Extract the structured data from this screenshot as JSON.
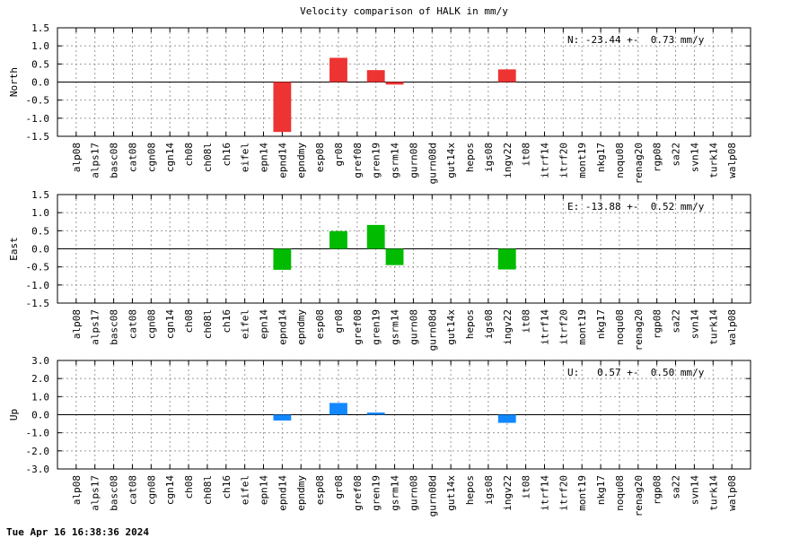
{
  "title": "Velocity comparison of HALK in mm/y",
  "timestamp": "Tue Apr 16 16:38:36 2024",
  "chart_data": [
    {
      "type": "bar",
      "ylabel": "North",
      "annotation": "N: -23.44 +-  0.73 mm/y",
      "ylim": [
        -1.5,
        1.5
      ],
      "yticks": [
        -1.5,
        -1.0,
        -0.5,
        0.0,
        0.5,
        1.0,
        1.5
      ],
      "color": "#ee3333",
      "grid": true,
      "categories": [
        "alp08",
        "alps17",
        "basc08",
        "cat08",
        "cgn08",
        "cgn14",
        "ch08",
        "ch08l",
        "ch16",
        "eifel",
        "epn14",
        "epnd14",
        "epndmy",
        "esp08",
        "gr08",
        "gref08",
        "gren19",
        "gsrm14",
        "gurn08",
        "gurn08d",
        "gut14x",
        "hepos",
        "igs08",
        "ingv22",
        "it08",
        "itrf14",
        "itrf20",
        "mont19",
        "nkg17",
        "noqu08",
        "renag20",
        "rgp08",
        "sa22",
        "svn14",
        "turk14",
        "walp08"
      ],
      "values": [
        0,
        0,
        0,
        0,
        0,
        0,
        0,
        0,
        0,
        0,
        0,
        -1.38,
        0,
        0,
        0.67,
        0,
        0.33,
        -0.07,
        0,
        0,
        0,
        0,
        0,
        0.35,
        0,
        0,
        0,
        0,
        0,
        0,
        0,
        0,
        0,
        0,
        0,
        0
      ]
    },
    {
      "type": "bar",
      "ylabel": "East",
      "annotation": "E: -13.88 +-  0.52 mm/y",
      "ylim": [
        -1.5,
        1.5
      ],
      "yticks": [
        -1.5,
        -1.0,
        -0.5,
        0.0,
        0.5,
        1.0,
        1.5
      ],
      "color": "#00bb00",
      "grid": true,
      "categories": [
        "alp08",
        "alps17",
        "basc08",
        "cat08",
        "cgn08",
        "cgn14",
        "ch08",
        "ch08l",
        "ch16",
        "eifel",
        "epn14",
        "epnd14",
        "epndmy",
        "esp08",
        "gr08",
        "gref08",
        "gren19",
        "gsrm14",
        "gurn08",
        "gurn08d",
        "gut14x",
        "hepos",
        "igs08",
        "ingv22",
        "it08",
        "itrf14",
        "itrf20",
        "mont19",
        "nkg17",
        "noqu08",
        "renag20",
        "rgp08",
        "sa22",
        "svn14",
        "turk14",
        "walp08"
      ],
      "values": [
        0,
        0,
        0,
        0,
        0,
        0,
        0,
        0,
        0,
        0,
        0,
        -0.58,
        0,
        0,
        0.49,
        0,
        0.66,
        -0.45,
        0,
        0,
        0,
        0,
        0,
        -0.57,
        0,
        0,
        0,
        0,
        0,
        0,
        0,
        0,
        0,
        0,
        0,
        0
      ]
    },
    {
      "type": "bar",
      "ylabel": "Up",
      "annotation": "U:   0.57 +-  0.50 mm/y",
      "ylim": [
        -3.0,
        3.0
      ],
      "yticks": [
        -3.0,
        -2.0,
        -1.0,
        0.0,
        1.0,
        2.0,
        3.0
      ],
      "color": "#1188ff",
      "grid": true,
      "categories": [
        "alp08",
        "alps17",
        "basc08",
        "cat08",
        "cgn08",
        "cgn14",
        "ch08",
        "ch08l",
        "ch16",
        "eifel",
        "epn14",
        "epnd14",
        "epndmy",
        "esp08",
        "gr08",
        "gref08",
        "gren19",
        "gsrm14",
        "gurn08",
        "gurn08d",
        "gut14x",
        "hepos",
        "igs08",
        "ingv22",
        "it08",
        "itrf14",
        "itrf20",
        "mont19",
        "nkg17",
        "noqu08",
        "renag20",
        "rgp08",
        "sa22",
        "svn14",
        "turk14",
        "walp08"
      ],
      "values": [
        0,
        0,
        0,
        0,
        0,
        0,
        0,
        0,
        0,
        0,
        0,
        -0.32,
        0,
        0,
        0.65,
        0,
        0.12,
        0,
        0,
        0,
        0,
        0,
        0,
        -0.45,
        0,
        0,
        0,
        0,
        0,
        0,
        0,
        0,
        0,
        0,
        0,
        0
      ]
    }
  ]
}
